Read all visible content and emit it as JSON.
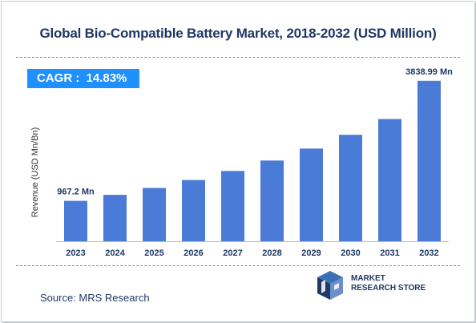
{
  "title": "Global Bio-Compatible Battery Market, 2018-2032 (USD Million)",
  "cagr": {
    "label": "CAGR :",
    "value": "14.83%"
  },
  "source": "Source: MRS Research",
  "logo": {
    "line1": "MARKET",
    "line2": "RESEARCH STORE"
  },
  "colors": {
    "bar": "#4a7bd6",
    "title": "#1f3864",
    "cagr_bg": "#1e90ff",
    "axis_text": "#1f3864"
  },
  "chart_data": {
    "type": "bar",
    "categories": [
      "2023",
      "2024",
      "2025",
      "2026",
      "2027",
      "2028",
      "2029",
      "2030",
      "2031",
      "2032"
    ],
    "values": [
      967.2,
      1110.6,
      1275.3,
      1464.4,
      1681.6,
      1930.9,
      2217.3,
      2546.1,
      2923.7,
      3838.99
    ],
    "ylabel": "Revenue (USD Mn/Bn)",
    "xlabel": "",
    "ylim": [
      0,
      4200
    ],
    "grid": false,
    "annotations": [
      {
        "category": "2023",
        "text": "967.2 Mn"
      },
      {
        "category": "2032",
        "text": "3838.99 Mn"
      }
    ]
  }
}
